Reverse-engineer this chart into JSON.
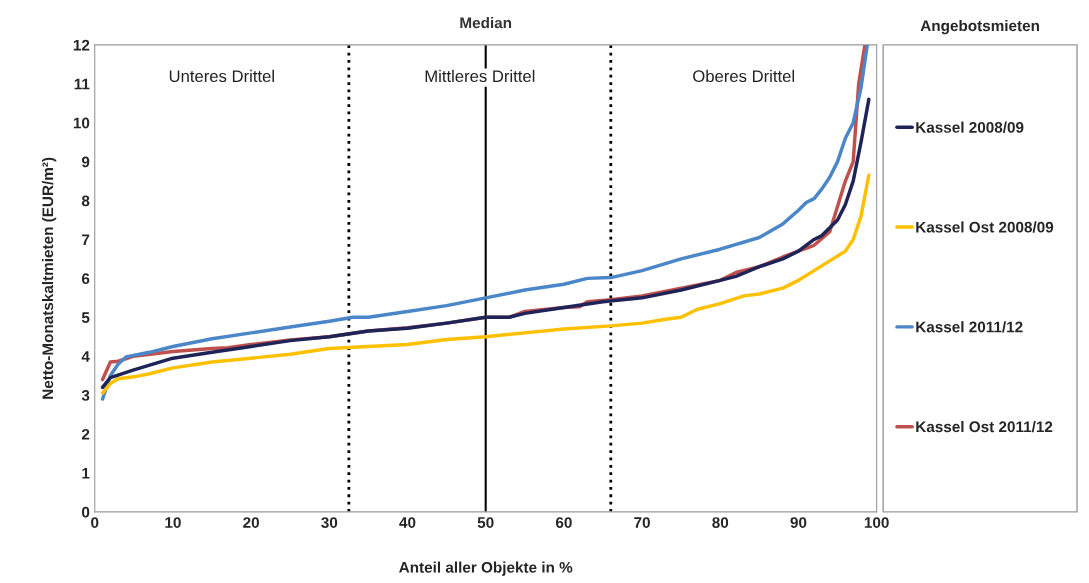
{
  "chart_data": {
    "type": "line",
    "xlabel": "Anteil aller Objekte in %",
    "ylabel": "Netto-Monatskaltmieten (EUR/m²)",
    "legend_title": "Angebotsmieten",
    "xlim": [
      0,
      100
    ],
    "xticks": [
      0,
      10,
      20,
      30,
      40,
      50,
      60,
      70,
      80,
      90,
      100
    ],
    "ylim": [
      0,
      12
    ],
    "yticks": [
      0,
      1,
      2,
      3,
      4,
      5,
      6,
      7,
      8,
      9,
      10,
      11,
      12
    ],
    "grid": false,
    "legend": "right",
    "marker": "none",
    "line_style": "solid",
    "series": [
      {
        "name": "Kassel 2008/09",
        "color": "#1f2458",
        "x": [
          1,
          2,
          5,
          10,
          15,
          20,
          25,
          30,
          35,
          40,
          45,
          50,
          53,
          55,
          60,
          65,
          70,
          75,
          80,
          82,
          85,
          88,
          90,
          92,
          93,
          95,
          96,
          97,
          98,
          99
        ],
        "values": [
          3.2,
          3.45,
          3.65,
          3.95,
          4.1,
          4.25,
          4.4,
          4.5,
          4.65,
          4.72,
          4.85,
          5.0,
          5.0,
          5.1,
          5.25,
          5.4,
          5.5,
          5.7,
          5.95,
          6.05,
          6.3,
          6.5,
          6.7,
          7.0,
          7.1,
          7.5,
          7.9,
          8.5,
          9.5,
          10.6
        ]
      },
      {
        "name": "Kassel Ost 2008/09",
        "color": "#ffc000",
        "x": [
          1,
          2,
          3,
          5,
          7,
          10,
          15,
          20,
          25,
          30,
          35,
          40,
          45,
          50,
          55,
          60,
          66,
          70,
          73,
          75,
          77,
          80,
          83,
          85,
          88,
          90,
          92,
          94,
          96,
          97,
          98,
          99
        ],
        "values": [
          3.05,
          3.3,
          3.42,
          3.47,
          3.55,
          3.7,
          3.85,
          3.95,
          4.05,
          4.2,
          4.25,
          4.3,
          4.43,
          4.5,
          4.6,
          4.7,
          4.78,
          4.85,
          4.95,
          5.0,
          5.2,
          5.35,
          5.55,
          5.6,
          5.75,
          5.95,
          6.2,
          6.45,
          6.7,
          7.0,
          7.6,
          8.65
        ]
      },
      {
        "name": "Kassel 2011/12",
        "color": "#4a86c8",
        "x": [
          1,
          2,
          3,
          4,
          7,
          10,
          15,
          20,
          25,
          30,
          33,
          35,
          40,
          45,
          50,
          55,
          60,
          63,
          66,
          70,
          75,
          80,
          85,
          88,
          90,
          91,
          92,
          93,
          94,
          95,
          96,
          97,
          98,
          98.8
        ],
        "values": [
          2.9,
          3.5,
          3.8,
          3.98,
          4.1,
          4.25,
          4.45,
          4.6,
          4.75,
          4.9,
          5.0,
          5.0,
          5.15,
          5.3,
          5.5,
          5.7,
          5.85,
          6.0,
          6.02,
          6.2,
          6.5,
          6.75,
          7.05,
          7.4,
          7.75,
          7.95,
          8.05,
          8.3,
          8.6,
          9.0,
          9.6,
          10.0,
          10.9,
          12
        ]
      },
      {
        "name": "Kassel Ost 2011/12",
        "color": "#c0504d",
        "x": [
          1,
          2,
          3,
          5,
          10,
          15,
          17,
          20,
          25,
          30,
          35,
          40,
          45,
          50,
          53,
          55,
          60,
          62,
          63,
          66,
          70,
          75,
          80,
          82,
          85,
          88,
          90,
          92,
          94,
          96,
          97,
          97.7,
          98.5
        ],
        "values": [
          3.4,
          3.85,
          3.87,
          4.0,
          4.12,
          4.2,
          4.22,
          4.3,
          4.42,
          4.5,
          4.65,
          4.73,
          4.85,
          5.0,
          5.0,
          5.15,
          5.25,
          5.27,
          5.4,
          5.45,
          5.55,
          5.75,
          5.95,
          6.15,
          6.3,
          6.55,
          6.7,
          6.85,
          7.2,
          8.5,
          9.0,
          11.0,
          12
        ]
      }
    ],
    "ref_lines": [
      {
        "axis": "x",
        "value": 32.5,
        "line_style": "dotted",
        "color": "#000000"
      },
      {
        "axis": "x",
        "value": 50,
        "label": "Median",
        "line_style": "solid",
        "color": "#000000"
      },
      {
        "axis": "x",
        "value": 66,
        "line_style": "dotted",
        "color": "#000000"
      }
    ],
    "annotations": [
      "Unteres Drittel",
      "Mittleres Drittel",
      "Oberes Drittel"
    ]
  }
}
